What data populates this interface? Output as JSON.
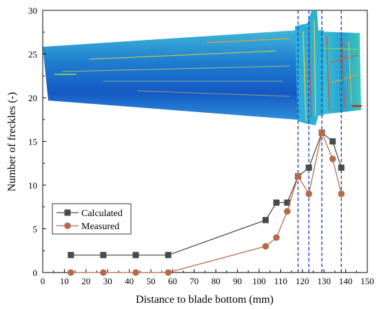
{
  "chart_data": {
    "type": "line",
    "xlabel": "Distance to blade bottom (mm)",
    "ylabel": "Number of freckles (-)",
    "xlim": [
      0,
      150
    ],
    "ylim": [
      0,
      30
    ],
    "x_ticks": [
      0,
      10,
      20,
      30,
      40,
      50,
      60,
      70,
      80,
      90,
      100,
      110,
      120,
      130,
      140,
      150
    ],
    "y_ticks": [
      0,
      5,
      10,
      15,
      20,
      25,
      30
    ],
    "grid": false,
    "legend_position": "bottom-left",
    "series": [
      {
        "name": "Calculated",
        "color": "#4a4a4a",
        "marker": "square",
        "x": [
          13,
          28,
          43,
          58,
          103,
          108,
          113,
          118,
          123,
          129,
          134,
          138
        ],
        "y": [
          2,
          2,
          2,
          2,
          6,
          8,
          8,
          11,
          12,
          16,
          15,
          12
        ]
      },
      {
        "name": "Measured",
        "color": "#b5694a",
        "marker": "circle",
        "x": [
          13,
          28,
          43,
          58,
          103,
          108,
          113,
          118,
          123,
          129,
          134,
          138
        ],
        "y": [
          0,
          0,
          0,
          0,
          3,
          4,
          7,
          11,
          9,
          16,
          13,
          9
        ]
      }
    ],
    "reference_lines_x": [
      118,
      123,
      129,
      138
    ],
    "reference_line_color": "#1f3fbf"
  },
  "overlay": {
    "image": "turbine-blade-contour",
    "description_icon": "blade-image"
  }
}
